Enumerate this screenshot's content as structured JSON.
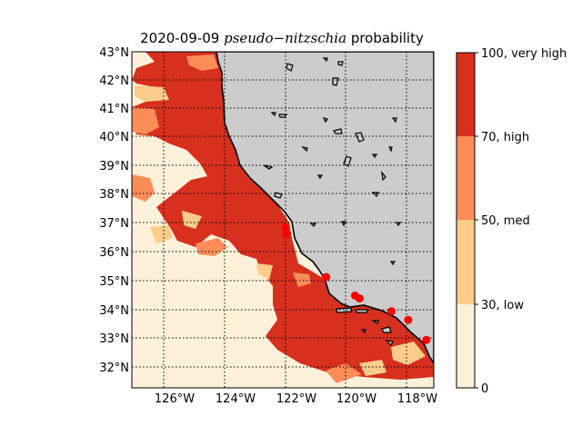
{
  "title": {
    "date": "2020-09-09",
    "species": "pseudo−nitzschia",
    "suffix": "probability"
  },
  "map": {
    "lon_ticks": [
      "126°W",
      "124°W",
      "122°W",
      "120°W",
      "118°W"
    ],
    "lat_ticks": [
      "43°N",
      "42°N",
      "41°N",
      "40°N",
      "39°N",
      "38°N",
      "37°N",
      "36°N",
      "35°N",
      "34°N",
      "33°N",
      "32°N"
    ],
    "land_color": "#cccccc",
    "ocean_low_color": "#fef0d9",
    "sample_point_color": "#ff0000",
    "sample_points": [
      {
        "lon": -122.0,
        "lat": 36.85
      },
      {
        "lon": -121.95,
        "lat": 36.6
      },
      {
        "lon": -120.65,
        "lat": 35.1
      },
      {
        "lon": -119.7,
        "lat": 34.45
      },
      {
        "lon": -119.55,
        "lat": 34.35
      },
      {
        "lon": -118.5,
        "lat": 33.9
      },
      {
        "lon": -117.95,
        "lat": 33.6
      },
      {
        "lon": -117.35,
        "lat": 32.9
      }
    ]
  },
  "legend": {
    "labels": [
      "100, very high",
      "70, high",
      "50, med",
      "30, low",
      "0"
    ],
    "colors": [
      "#d7301f",
      "#fc8d59",
      "#fdcc8a",
      "#fef0d9"
    ]
  }
}
